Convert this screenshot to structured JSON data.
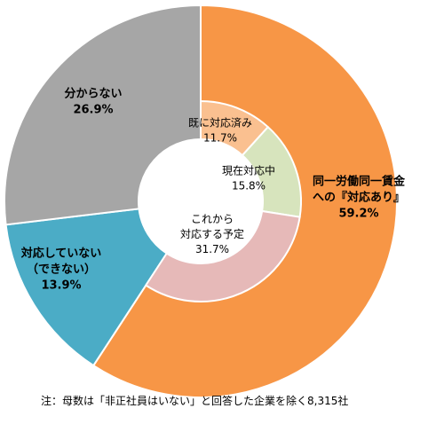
{
  "chart_data": {
    "type": "pie",
    "style": "double-donut",
    "outer": [
      {
        "label_lines": [
          "同一労働同一賃金",
          "への『対応あり』"
        ],
        "value": 59.2,
        "value_text": "59.2%",
        "color": "#f79646"
      },
      {
        "label_lines": [
          "対応していない",
          "（できない）"
        ],
        "value": 13.9,
        "value_text": "13.9%",
        "color": "#4bacc6"
      },
      {
        "label_lines": [
          "分からない"
        ],
        "value": 26.9,
        "value_text": "26.9%",
        "color": "#a6a6a6"
      }
    ],
    "inner": [
      {
        "label_lines": [
          "既に対応済み"
        ],
        "value": 11.7,
        "value_text": "11.7%",
        "color": "#fac090"
      },
      {
        "label_lines": [
          "現在対応中"
        ],
        "value": 15.8,
        "value_text": "15.8%",
        "color": "#d7e4bd"
      },
      {
        "label_lines": [
          "これから",
          "対応する予定"
        ],
        "value": 31.7,
        "value_text": "31.7%",
        "color": "#e6b9b8"
      }
    ]
  },
  "footnote": "注：母数は「非正社員はいない」と回答した企業を除く8,315社"
}
